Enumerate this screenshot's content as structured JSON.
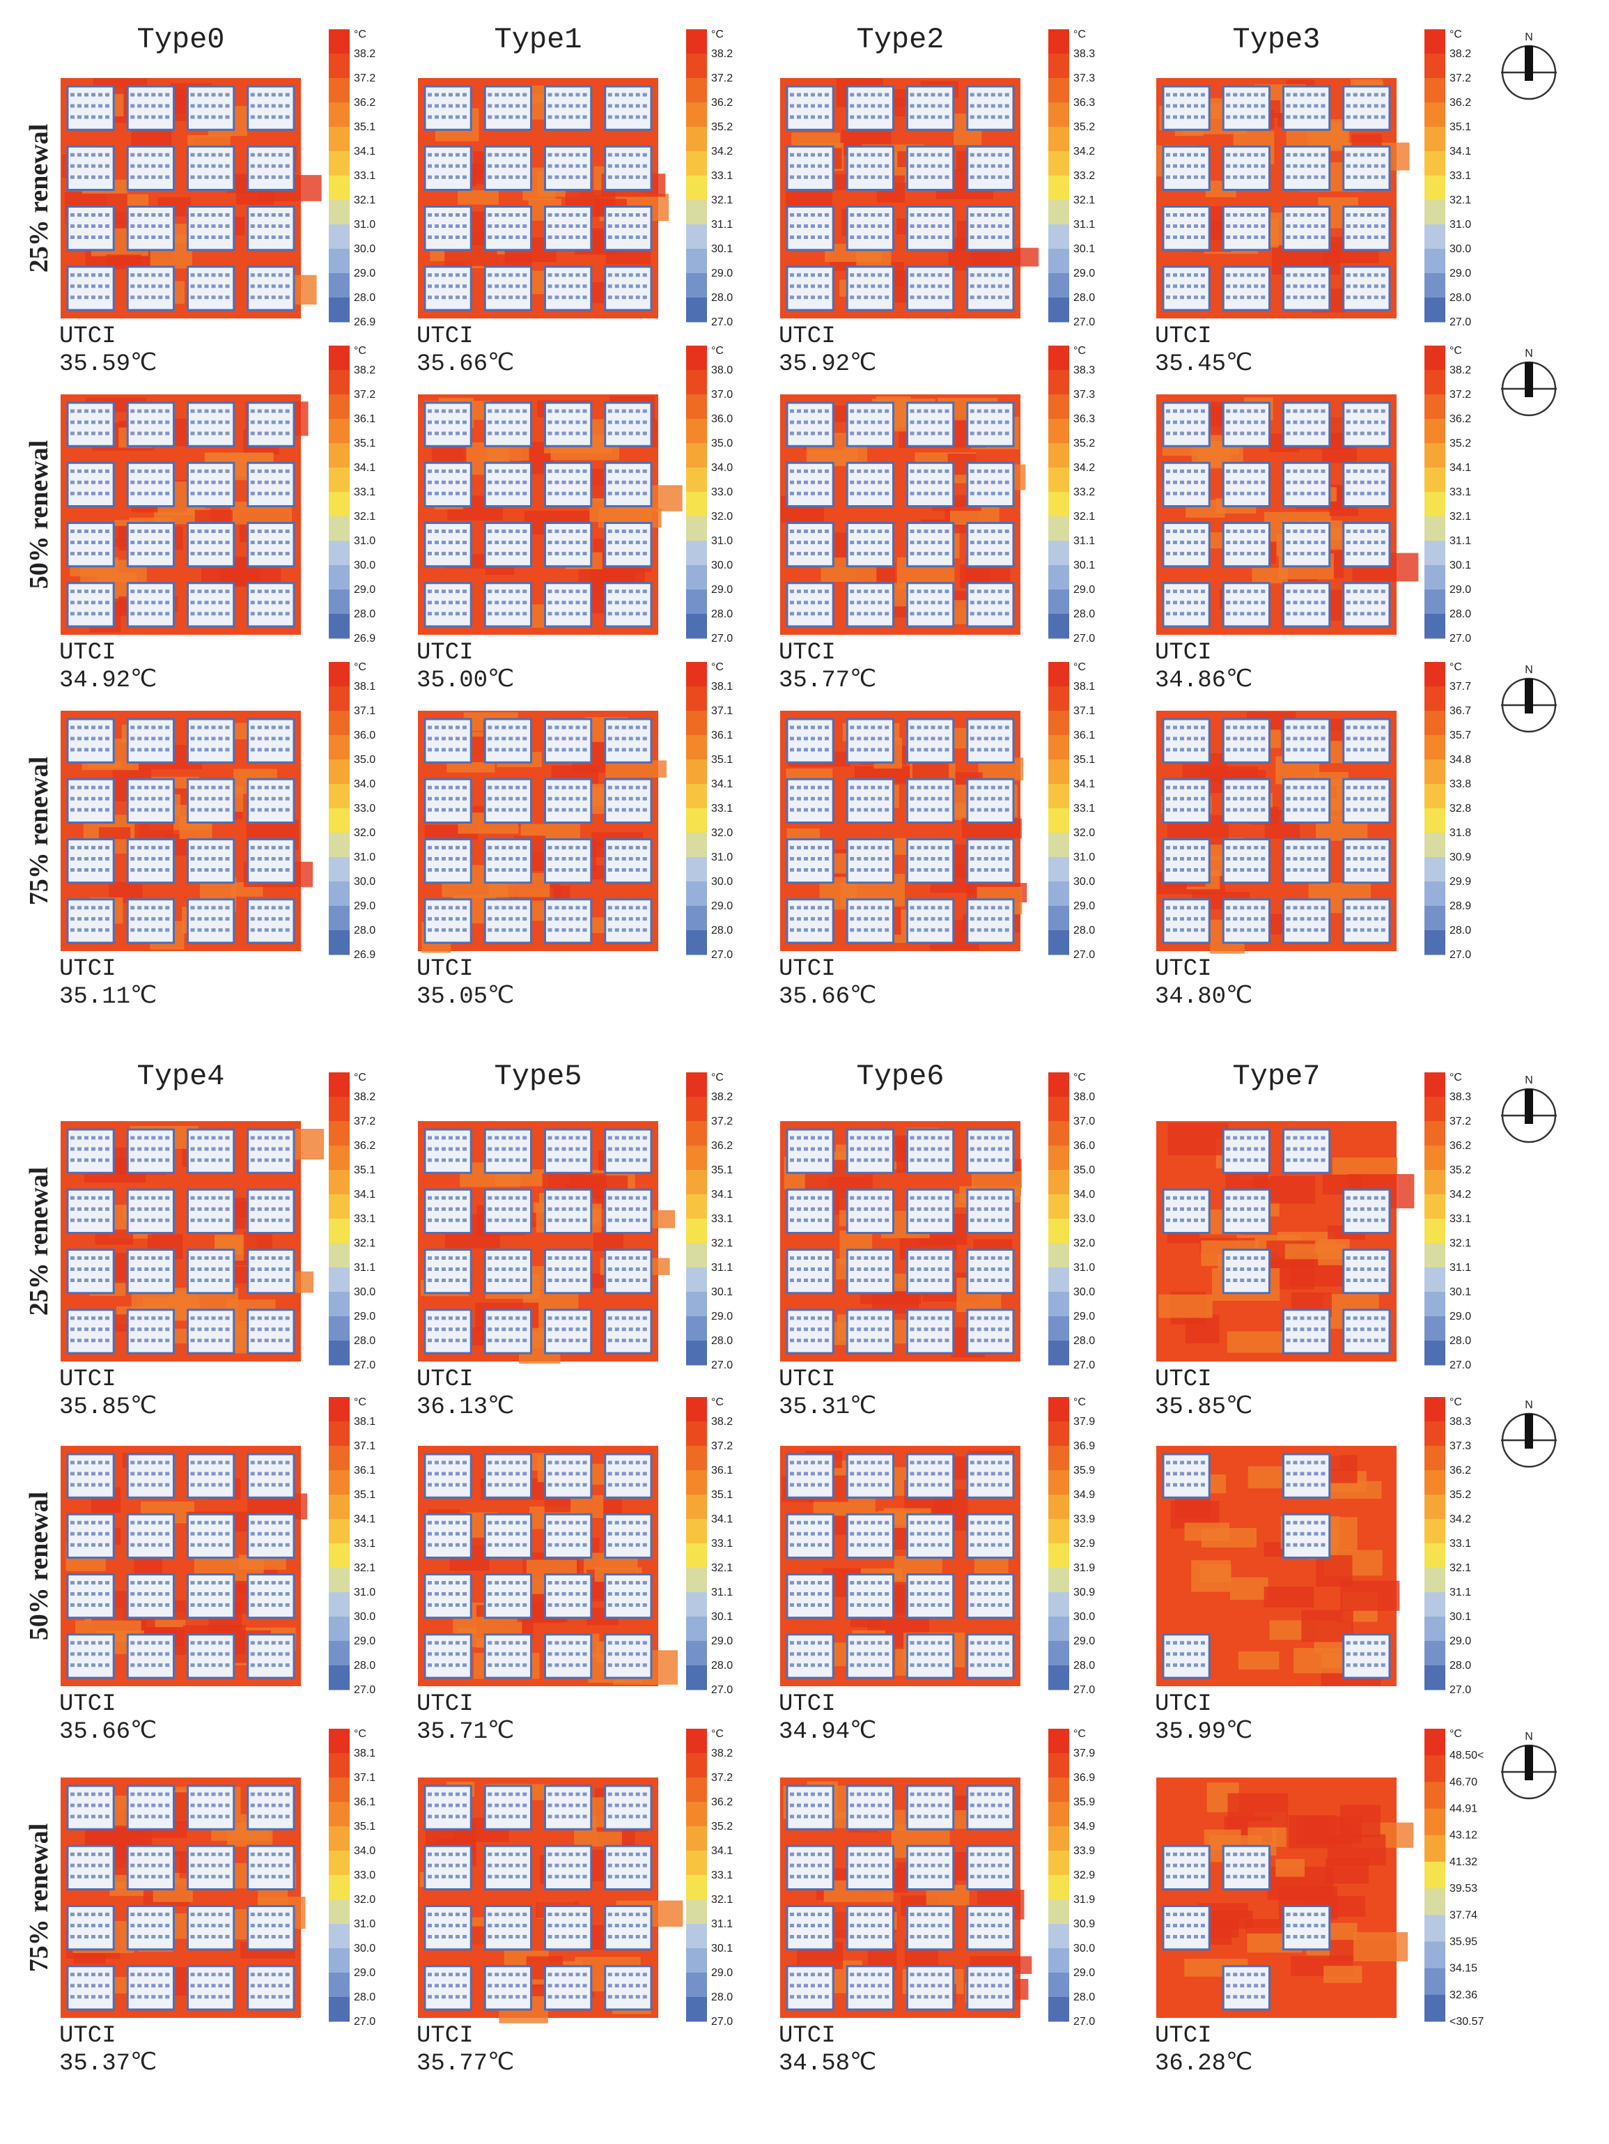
{
  "compass_label": "N",
  "sections": [
    {
      "types": [
        "Type0",
        "Type1",
        "Type2",
        "Type3"
      ],
      "rows": [
        {
          "label": "25% renewal",
          "panels": [
            {
              "metric": "UTCI",
              "value": "35.59℃",
              "unit": "°C",
              "legend": [
                "38.2",
                "37.2",
                "36.2",
                "35.1",
                "34.1",
                "33.1",
                "32.1",
                "31.0",
                "30.0",
                "29.0",
                "28.0",
                "26.9"
              ]
            },
            {
              "metric": "UTCI",
              "value": "35.66℃",
              "unit": "°C",
              "legend": [
                "38.2",
                "37.2",
                "36.2",
                "35.2",
                "34.2",
                "33.1",
                "32.1",
                "31.1",
                "30.1",
                "29.0",
                "28.0",
                "27.0"
              ]
            },
            {
              "metric": "UTCI",
              "value": "35.92℃",
              "unit": "°C",
              "legend": [
                "38.3",
                "37.3",
                "36.3",
                "35.2",
                "34.2",
                "33.2",
                "32.1",
                "31.1",
                "30.1",
                "29.0",
                "28.0",
                "27.0"
              ]
            },
            {
              "metric": "UTCI",
              "value": "35.45℃",
              "unit": "°C",
              "legend": [
                "38.2",
                "37.2",
                "36.2",
                "35.1",
                "34.1",
                "33.1",
                "32.1",
                "31.0",
                "30.0",
                "29.0",
                "28.0",
                "27.0"
              ]
            }
          ]
        },
        {
          "label": "50% renewal",
          "panels": [
            {
              "metric": "UTCI",
              "value": "34.92℃",
              "unit": "°C",
              "legend": [
                "38.2",
                "37.2",
                "36.1",
                "35.1",
                "34.1",
                "33.1",
                "32.1",
                "31.0",
                "30.0",
                "29.0",
                "28.0",
                "26.9"
              ]
            },
            {
              "metric": "UTCI",
              "value": "35.00℃",
              "unit": "°C",
              "legend": [
                "38.0",
                "37.0",
                "36.0",
                "35.0",
                "34.0",
                "33.0",
                "32.0",
                "31.0",
                "30.0",
                "29.0",
                "28.0",
                "27.0"
              ]
            },
            {
              "metric": "UTCI",
              "value": "35.77℃",
              "unit": "°C",
              "legend": [
                "38.3",
                "37.3",
                "36.3",
                "35.2",
                "34.2",
                "33.2",
                "32.1",
                "31.1",
                "30.1",
                "29.0",
                "28.0",
                "27.0"
              ]
            },
            {
              "metric": "UTCI",
              "value": "34.86℃",
              "unit": "°C",
              "legend": [
                "38.2",
                "37.2",
                "36.2",
                "35.2",
                "34.1",
                "33.1",
                "32.1",
                "31.1",
                "30.1",
                "29.0",
                "28.0",
                "27.0"
              ]
            }
          ]
        },
        {
          "label": "75% renewal",
          "panels": [
            {
              "metric": "UTCI",
              "value": "35.11℃",
              "unit": "°C",
              "legend": [
                "38.1",
                "37.1",
                "36.0",
                "35.0",
                "34.0",
                "33.0",
                "32.0",
                "31.0",
                "30.0",
                "29.0",
                "28.0",
                "26.9"
              ]
            },
            {
              "metric": "UTCI",
              "value": "35.05℃",
              "unit": "°C",
              "legend": [
                "38.1",
                "37.1",
                "36.1",
                "35.1",
                "34.1",
                "33.1",
                "32.0",
                "31.0",
                "30.0",
                "29.0",
                "28.0",
                "27.0"
              ]
            },
            {
              "metric": "UTCI",
              "value": "35.66℃",
              "unit": "°C",
              "legend": [
                "38.1",
                "37.1",
                "36.1",
                "35.1",
                "34.1",
                "33.1",
                "32.0",
                "31.0",
                "30.0",
                "29.0",
                "28.0",
                "27.0"
              ]
            },
            {
              "metric": "UTCI",
              "value": "34.80℃",
              "unit": "°C",
              "legend": [
                "37.7",
                "36.7",
                "35.7",
                "34.8",
                "33.8",
                "32.8",
                "31.8",
                "30.9",
                "29.9",
                "28.9",
                "28.0",
                "27.0"
              ]
            }
          ]
        }
      ]
    },
    {
      "types": [
        "Type4",
        "Type5",
        "Type6",
        "Type7"
      ],
      "rows": [
        {
          "label": "25% renewal",
          "panels": [
            {
              "metric": "UTCI",
              "value": "35.85℃",
              "unit": "°C",
              "legend": [
                "38.2",
                "37.2",
                "36.2",
                "35.1",
                "34.1",
                "33.1",
                "32.1",
                "31.1",
                "30.0",
                "29.0",
                "28.0",
                "27.0"
              ]
            },
            {
              "metric": "UTCI",
              "value": "36.13℃",
              "unit": "°C",
              "legend": [
                "38.2",
                "37.2",
                "36.2",
                "35.1",
                "34.1",
                "33.1",
                "32.1",
                "31.1",
                "30.1",
                "29.0",
                "28.0",
                "27.0"
              ]
            },
            {
              "metric": "UTCI",
              "value": "35.31℃",
              "unit": "°C",
              "legend": [
                "38.0",
                "37.0",
                "36.0",
                "35.0",
                "34.0",
                "33.0",
                "32.0",
                "31.0",
                "30.0",
                "29.0",
                "28.0",
                "27.0"
              ]
            },
            {
              "metric": "UTCI",
              "value": "35.85℃",
              "unit": "°C",
              "legend": [
                "38.3",
                "37.2",
                "36.2",
                "35.2",
                "34.2",
                "33.1",
                "32.1",
                "31.1",
                "30.1",
                "29.0",
                "28.0",
                "27.0"
              ]
            }
          ]
        },
        {
          "label": "50% renewal",
          "panels": [
            {
              "metric": "UTCI",
              "value": "35.66℃",
              "unit": "°C",
              "legend": [
                "38.1",
                "37.1",
                "36.1",
                "35.1",
                "34.1",
                "33.1",
                "32.1",
                "31.0",
                "30.0",
                "29.0",
                "28.0",
                "27.0"
              ]
            },
            {
              "metric": "UTCI",
              "value": "35.71℃",
              "unit": "°C",
              "legend": [
                "38.2",
                "37.2",
                "36.1",
                "35.1",
                "34.1",
                "33.1",
                "32.1",
                "31.1",
                "30.1",
                "29.0",
                "28.0",
                "27.0"
              ]
            },
            {
              "metric": "UTCI",
              "value": "34.94℃",
              "unit": "°C",
              "legend": [
                "37.9",
                "36.9",
                "35.9",
                "34.9",
                "33.9",
                "32.9",
                "31.9",
                "30.9",
                "30.0",
                "29.0",
                "28.0",
                "27.0"
              ]
            },
            {
              "metric": "UTCI",
              "value": "35.99℃",
              "unit": "°C",
              "legend": [
                "38.3",
                "37.3",
                "36.2",
                "35.2",
                "34.2",
                "33.1",
                "32.1",
                "31.1",
                "30.1",
                "29.0",
                "28.0",
                "27.0"
              ]
            }
          ]
        },
        {
          "label": "75% renewal",
          "panels": [
            {
              "metric": "UTCI",
              "value": "35.37℃",
              "unit": "°C",
              "legend": [
                "38.1",
                "37.1",
                "36.1",
                "35.1",
                "34.0",
                "33.0",
                "32.0",
                "31.0",
                "30.0",
                "29.0",
                "28.0",
                "27.0"
              ]
            },
            {
              "metric": "UTCI",
              "value": "35.77℃",
              "unit": "°C",
              "legend": [
                "38.2",
                "37.2",
                "36.2",
                "35.2",
                "34.1",
                "33.1",
                "32.1",
                "31.1",
                "30.1",
                "29.0",
                "28.0",
                "27.0"
              ]
            },
            {
              "metric": "UTCI",
              "value": "34.58℃",
              "unit": "°C",
              "legend": [
                "37.9",
                "36.9",
                "35.9",
                "34.9",
                "33.9",
                "32.9",
                "31.9",
                "30.9",
                "30.0",
                "29.0",
                "28.0",
                "27.0"
              ]
            },
            {
              "metric": "UTCI",
              "value": "36.28℃",
              "unit": "°C",
              "legend": [
                "48.50<",
                "46.70",
                "44.91",
                "43.12",
                "41.32",
                "39.53",
                "37.74",
                "35.95",
                "34.15",
                "32.36",
                "<30.57"
              ]
            }
          ]
        }
      ]
    }
  ]
}
